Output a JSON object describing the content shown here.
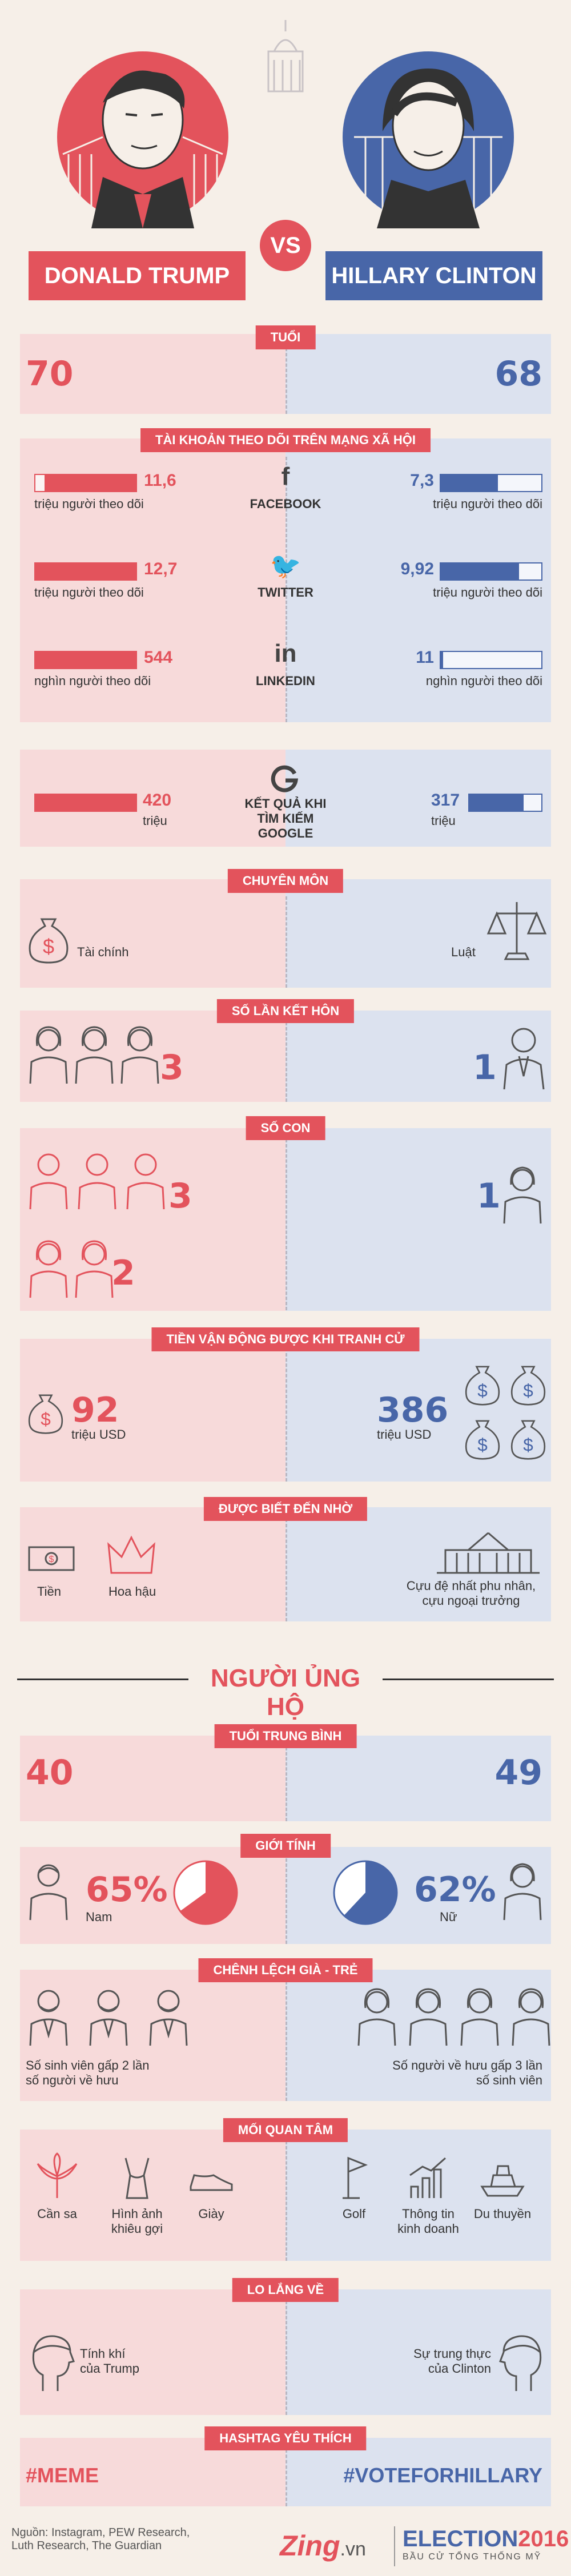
{
  "header": {
    "left_name": "DONALD TRUMP",
    "right_name": "HILLARY CLINTON",
    "vs": "VS"
  },
  "age": {
    "title": "Tuổi",
    "trump": "70",
    "clinton": "68"
  },
  "social": {
    "title": "Tài khoản theo dõi trên mạng xã hội",
    "rows": [
      {
        "platform": "FACEBOOK",
        "icon": "facebook-icon",
        "trump_value": "11,6",
        "trump_unit": "triệu người theo dõi",
        "trump_fill": 0.91,
        "clinton_value": "7,3",
        "clinton_unit": "triệu người theo dõi",
        "clinton_fill": 0.57
      },
      {
        "platform": "TWITTER",
        "icon": "twitter-icon",
        "trump_value": "12,7",
        "trump_unit": "triệu người theo dõi",
        "trump_fill": 1.0,
        "clinton_value": "9,92",
        "clinton_unit": "triệu người theo dõi",
        "clinton_fill": 0.78
      },
      {
        "platform": "LINKEDIN",
        "icon": "linkedin-icon",
        "trump_value": "544",
        "trump_unit": "nghìn người theo dõi",
        "trump_fill": 1.0,
        "clinton_value": "11",
        "clinton_unit": "nghìn người theo dõi",
        "clinton_fill": 0.02
      }
    ]
  },
  "google": {
    "label_line1": "KẾT QUẢ KHI",
    "label_line2": "TÌM KIẾM GOOGLE",
    "icon": "google-icon",
    "trump_value": "420",
    "trump_unit": "triệu",
    "trump_fill": 1.0,
    "clinton_value": "317",
    "clinton_unit": "triệu",
    "clinton_fill": 0.75
  },
  "expertise": {
    "title": "Chuyên môn",
    "trump": "Tài chính",
    "clinton": "Luật",
    "trump_icon": "money-bag-icon",
    "clinton_icon": "scales-icon"
  },
  "marriages": {
    "title": "Số lần kết hôn",
    "trump": "3",
    "clinton": "1"
  },
  "children": {
    "title": "Số con",
    "trump_sons": "3",
    "trump_daughters": "2",
    "clinton": "1"
  },
  "fundraising": {
    "title": "Tiền vận động được khi tranh cử",
    "trump_value": "92",
    "trump_unit": "triệu USD",
    "clinton_value": "386",
    "clinton_unit": "triệu USD"
  },
  "known_for": {
    "title": "Được biết đến nhờ",
    "trump_items": [
      "Tiền",
      "Hoa hậu"
    ],
    "clinton_item_line1": "Cựu đệ nhất phu nhân,",
    "clinton_item_line2": "cựu ngoại trưởng"
  },
  "supporters": {
    "heading": "NGƯỜI ỦNG HỘ",
    "avg_age": {
      "title": "Tuổi trung bình",
      "trump": "40",
      "clinton": "49"
    },
    "gender": {
      "title": "Giới tính",
      "trump_pct": "65%",
      "trump_label": "Nam",
      "trump_value": 65,
      "clinton_pct": "62%",
      "clinton_label": "Nữ",
      "clinton_value": 62
    },
    "age_gap": {
      "title": "Chênh lệch già - trẻ",
      "trump_line1": "Số sinh viên gấp 2 lần",
      "trump_line2": "số người về hưu",
      "clinton_line1": "Số người về hưu gấp 3 lần",
      "clinton_line2": "số sinh viên"
    },
    "interests": {
      "title": "Mối quan tâm",
      "trump": [
        {
          "line1": "Cần sa",
          "line2": "",
          "icon": "cannabis-leaf-icon"
        },
        {
          "line1": "Hình ảnh",
          "line2": "khiêu gợi",
          "icon": "lingerie-icon"
        },
        {
          "line1": "Giày",
          "line2": "",
          "icon": "shoe-icon"
        }
      ],
      "clinton": [
        {
          "line1": "Golf",
          "line2": "",
          "icon": "golf-flag-icon"
        },
        {
          "line1": "Thông tin",
          "line2": "kinh doanh",
          "icon": "bar-chart-icon"
        },
        {
          "line1": "Du thuyền",
          "line2": "",
          "icon": "yacht-icon"
        }
      ]
    },
    "worries": {
      "title": "Lo lắng về",
      "trump_line1": "Tính khí",
      "trump_line2": "của Trump",
      "clinton_line1": "Sự trung thực",
      "clinton_line2": "của Clinton"
    },
    "hashtags": {
      "title": "Hashtag yêu thích",
      "trump": "#MEME",
      "clinton": "#VOTEFORHILLARY"
    }
  },
  "footer": {
    "source_line1": "Nguồn: Instagram, PEW Research,",
    "source_line2": "Luth Research, The Guardian",
    "brand": "Zing",
    "brand_suffix": ".vn",
    "election": "ELECTION",
    "election_year": "2016",
    "election_sub": "BẦU CỬ TỔNG THỐNG MỸ"
  },
  "colors": {
    "red": "#e3535c",
    "blue": "#4866a8",
    "pink_bg": "#f7dada",
    "blue_bg": "#dce2ef",
    "page_bg": "#f6efe8"
  }
}
